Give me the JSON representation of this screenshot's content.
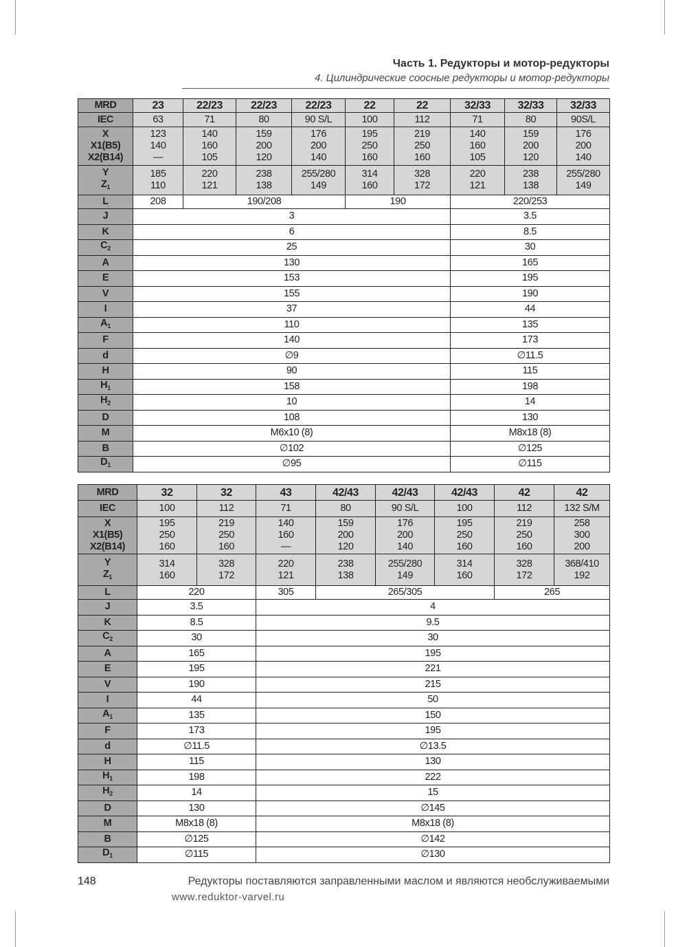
{
  "header": {
    "part": "Часть 1. Редукторы и мотор-редукторы",
    "section": "4. Цилиндрические соосные редукторы и мотор-редукторы"
  },
  "footer": {
    "page_number": "148",
    "note": "Редукторы поставляются заправленными маслом и являются необслуживаемыми",
    "url": "www.reduktor-varvel.ru"
  },
  "tables": [
    {
      "mrd_label": "MRD",
      "mrd": [
        "23",
        "22/23",
        "22/23",
        "22/23",
        "22",
        "22",
        "32/33",
        "32/33",
        "32/33"
      ],
      "iec_label": "IEC",
      "iec": [
        "63",
        "71",
        "80",
        "90 S/L",
        "100",
        "112",
        "71",
        "80",
        "90S/L"
      ],
      "x_labels": [
        "X",
        "X1(B5)",
        "X2(B14)"
      ],
      "x": [
        [
          "123",
          "140",
          "—"
        ],
        [
          "140",
          "160",
          "105"
        ],
        [
          "159",
          "200",
          "120"
        ],
        [
          "176",
          "200",
          "140"
        ],
        [
          "195",
          "250",
          "160"
        ],
        [
          "219",
          "250",
          "160"
        ],
        [
          "140",
          "160",
          "105"
        ],
        [
          "159",
          "200",
          "120"
        ],
        [
          "176",
          "200",
          "140"
        ]
      ],
      "yz_labels": [
        "Y",
        "Z",
        "1"
      ],
      "yz": [
        [
          "185",
          "110"
        ],
        [
          "220",
          "121"
        ],
        [
          "238",
          "138"
        ],
        [
          "255/280",
          "149"
        ],
        [
          "314",
          "160"
        ],
        [
          "328",
          "172"
        ],
        [
          "220",
          "121"
        ],
        [
          "238",
          "138"
        ],
        [
          "255/280",
          "149"
        ]
      ],
      "l_label": "L",
      "l": [
        {
          "v": "208",
          "span": 1
        },
        {
          "v": "190/208",
          "span": 3
        },
        {
          "v": "190",
          "span": 2
        },
        {
          "v": "220/253",
          "span": 3
        }
      ],
      "groups": [
        6,
        3
      ],
      "rows": [
        {
          "l": "J",
          "s": "",
          "v": [
            "3",
            "3.5"
          ]
        },
        {
          "l": "K",
          "s": "",
          "v": [
            "6",
            "8.5"
          ]
        },
        {
          "l": "C",
          "s": "2",
          "v": [
            "25",
            "30"
          ]
        },
        {
          "l": "A",
          "s": "",
          "v": [
            "130",
            "165"
          ]
        },
        {
          "l": "E",
          "s": "",
          "v": [
            "153",
            "195"
          ]
        },
        {
          "l": "V",
          "s": "",
          "v": [
            "155",
            "190"
          ]
        },
        {
          "l": "I",
          "s": "",
          "v": [
            "37",
            "44"
          ]
        },
        {
          "l": "A",
          "s": "1",
          "v": [
            "110",
            "135"
          ]
        },
        {
          "l": "F",
          "s": "",
          "v": [
            "140",
            "173"
          ]
        },
        {
          "l": "d",
          "s": "",
          "v": [
            "∅9",
            "∅11.5"
          ]
        },
        {
          "l": "H",
          "s": "",
          "v": [
            "90",
            "115"
          ]
        },
        {
          "l": "H",
          "s": "1",
          "v": [
            "158",
            "198"
          ]
        },
        {
          "l": "H",
          "s": "2",
          "v": [
            "10",
            "14"
          ]
        },
        {
          "l": "D",
          "s": "",
          "v": [
            "108",
            "130"
          ]
        },
        {
          "l": "M",
          "s": "",
          "v": [
            "M6x10 (8)",
            "M8x18 (8)"
          ]
        },
        {
          "l": "B",
          "s": "",
          "v": [
            "∅102",
            "∅125"
          ]
        },
        {
          "l": "D",
          "s": "1",
          "v": [
            "∅95",
            "∅115"
          ]
        }
      ]
    },
    {
      "mrd_label": "MRD",
      "mrd": [
        "32",
        "32",
        "43",
        "42/43",
        "42/43",
        "42/43",
        "42",
        "42"
      ],
      "iec_label": "IEC",
      "iec": [
        "100",
        "112",
        "71",
        "80",
        "90 S/L",
        "100",
        "112",
        "132 S/M"
      ],
      "x_labels": [
        "X",
        "X1(B5)",
        "X2(B14)"
      ],
      "x": [
        [
          "195",
          "250",
          "160"
        ],
        [
          "219",
          "250",
          "160"
        ],
        [
          "140",
          "160",
          "—"
        ],
        [
          "159",
          "200",
          "120"
        ],
        [
          "176",
          "200",
          "140"
        ],
        [
          "195",
          "250",
          "160"
        ],
        [
          "219",
          "250",
          "160"
        ],
        [
          "258",
          "300",
          "200"
        ]
      ],
      "yz_labels": [
        "Y",
        "Z",
        "1"
      ],
      "yz": [
        [
          "314",
          "160"
        ],
        [
          "328",
          "172"
        ],
        [
          "220",
          "121"
        ],
        [
          "238",
          "138"
        ],
        [
          "255/280",
          "149"
        ],
        [
          "314",
          "160"
        ],
        [
          "328",
          "172"
        ],
        [
          "368/410",
          "192"
        ]
      ],
      "l_label": "L",
      "l": [
        {
          "v": "220",
          "span": 2
        },
        {
          "v": "305",
          "span": 1
        },
        {
          "v": "265/305",
          "span": 3
        },
        {
          "v": "265",
          "span": 2
        }
      ],
      "groups": [
        2,
        6
      ],
      "rows": [
        {
          "l": "J",
          "s": "",
          "v": [
            "3.5",
            "4"
          ]
        },
        {
          "l": "K",
          "s": "",
          "v": [
            "8.5",
            "9.5"
          ]
        },
        {
          "l": "C",
          "s": "2",
          "v": [
            "30",
            "30"
          ]
        },
        {
          "l": "A",
          "s": "",
          "v": [
            "165",
            "195"
          ]
        },
        {
          "l": "E",
          "s": "",
          "v": [
            "195",
            "221"
          ]
        },
        {
          "l": "V",
          "s": "",
          "v": [
            "190",
            "215"
          ]
        },
        {
          "l": "I",
          "s": "",
          "v": [
            "44",
            "50"
          ]
        },
        {
          "l": "A",
          "s": "1",
          "v": [
            "135",
            "150"
          ]
        },
        {
          "l": "F",
          "s": "",
          "v": [
            "173",
            "195"
          ]
        },
        {
          "l": "d",
          "s": "",
          "v": [
            "∅11.5",
            "∅13.5"
          ]
        },
        {
          "l": "H",
          "s": "",
          "v": [
            "115",
            "130"
          ]
        },
        {
          "l": "H",
          "s": "1",
          "v": [
            "198",
            "222"
          ]
        },
        {
          "l": "H",
          "s": "2",
          "v": [
            "14",
            "15"
          ]
        },
        {
          "l": "D",
          "s": "",
          "v": [
            "130",
            "∅145"
          ]
        },
        {
          "l": "M",
          "s": "",
          "v": [
            "M8x18 (8)",
            "M8x18 (8)"
          ]
        },
        {
          "l": "B",
          "s": "",
          "v": [
            "∅125",
            "∅142"
          ]
        },
        {
          "l": "D",
          "s": "1",
          "v": [
            "∅115",
            "∅130"
          ]
        }
      ]
    }
  ]
}
